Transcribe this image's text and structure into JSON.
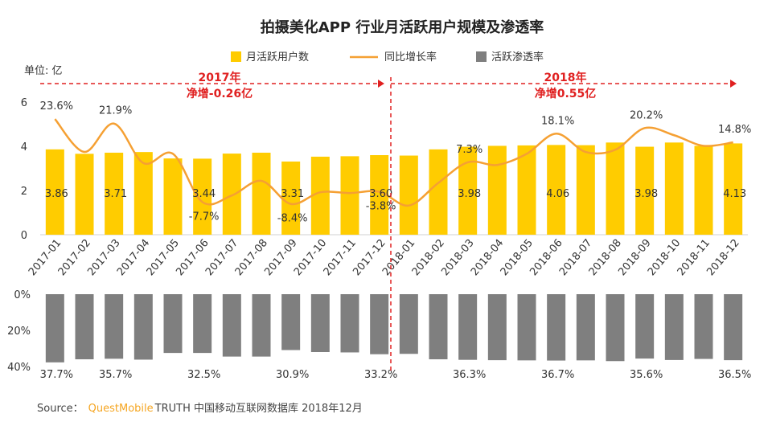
{
  "chart_data": {
    "type": "bar+line",
    "title": "拍摄美化APP 行业月活跃用户规模及渗透率",
    "unit_label": "单位: 亿",
    "legend": {
      "bars": "月活跃用户数",
      "line": "同比增长率",
      "pen": "活跃渗透率"
    },
    "categories": [
      "2017-01",
      "2017-02",
      "2017-03",
      "2017-04",
      "2017-05",
      "2017-06",
      "2017-07",
      "2017-08",
      "2017-09",
      "2017-10",
      "2017-11",
      "2017-12",
      "2018-01",
      "2018-02",
      "2018-03",
      "2018-04",
      "2018-05",
      "2018-06",
      "2018-07",
      "2018-08",
      "2018-09",
      "2018-10",
      "2018-11",
      "2018-12"
    ],
    "mau": [
      3.86,
      3.66,
      3.71,
      3.74,
      3.45,
      3.44,
      3.67,
      3.71,
      3.31,
      3.53,
      3.55,
      3.6,
      3.58,
      3.86,
      3.98,
      4.02,
      4.04,
      4.06,
      4.05,
      4.17,
      3.98,
      4.17,
      4.02,
      4.13
    ],
    "mau_labels": [
      "3.86",
      "",
      "3.71",
      "",
      "",
      "3.44",
      "",
      "",
      "3.31",
      "",
      "",
      "3.60",
      "",
      "",
      "3.98",
      "",
      "",
      "4.06",
      "",
      "",
      "3.98",
      "",
      "",
      "4.13"
    ],
    "growth": [
      23.6,
      11.2,
      21.9,
      7.0,
      10.5,
      -7.7,
      -5.2,
      0.3,
      -8.4,
      -4.0,
      -4.3,
      -3.8,
      -9.0,
      -0.5,
      7.3,
      6.3,
      10.5,
      18.1,
      11.2,
      12.0,
      20.2,
      17.5,
      13.5,
      14.8
    ],
    "growth_labels": [
      "23.6%",
      "",
      "21.9%",
      "",
      "",
      "-7.7%",
      "",
      "",
      "-8.4%",
      "",
      "",
      "-3.8%",
      "",
      "",
      "7.3%",
      "",
      "",
      "18.1%",
      "",
      "",
      "20.2%",
      "",
      "",
      "14.8%"
    ],
    "penetration": [
      37.7,
      36.0,
      35.7,
      36.2,
      32.5,
      32.5,
      34.5,
      34.5,
      30.9,
      32.0,
      32.2,
      33.2,
      33.0,
      36.0,
      36.3,
      36.5,
      36.6,
      36.7,
      36.6,
      37.0,
      35.6,
      36.4,
      35.8,
      36.5
    ],
    "penetration_labels": [
      "37.7%",
      "",
      "35.7%",
      "",
      "",
      "32.5%",
      "",
      "",
      "30.9%",
      "",
      "",
      "33.2%",
      "",
      "",
      "36.3%",
      "",
      "",
      "36.7%",
      "",
      "",
      "35.6%",
      "",
      "",
      "36.5%"
    ],
    "y_left": {
      "min": 0,
      "max": 6,
      "ticks": [
        "0",
        "2",
        "4",
        "6"
      ]
    },
    "y_bottom": {
      "min": 0,
      "max": 40,
      "ticks": [
        "0%",
        "20%",
        "40%"
      ]
    },
    "annotations": [
      {
        "year": "2017年",
        "text": "净增-0.26亿"
      },
      {
        "year": "2018年",
        "text": "净增0.55亿"
      }
    ],
    "colors": {
      "bar": "#ffcc00",
      "line": "#f5a033",
      "pen": "#7f7f7f",
      "anno": "#e02020"
    }
  },
  "source": {
    "prefix": "Source：",
    "brand": "QuestMobile",
    "rest": "TRUTH 中国移动互联网数据库 2018年12月"
  }
}
